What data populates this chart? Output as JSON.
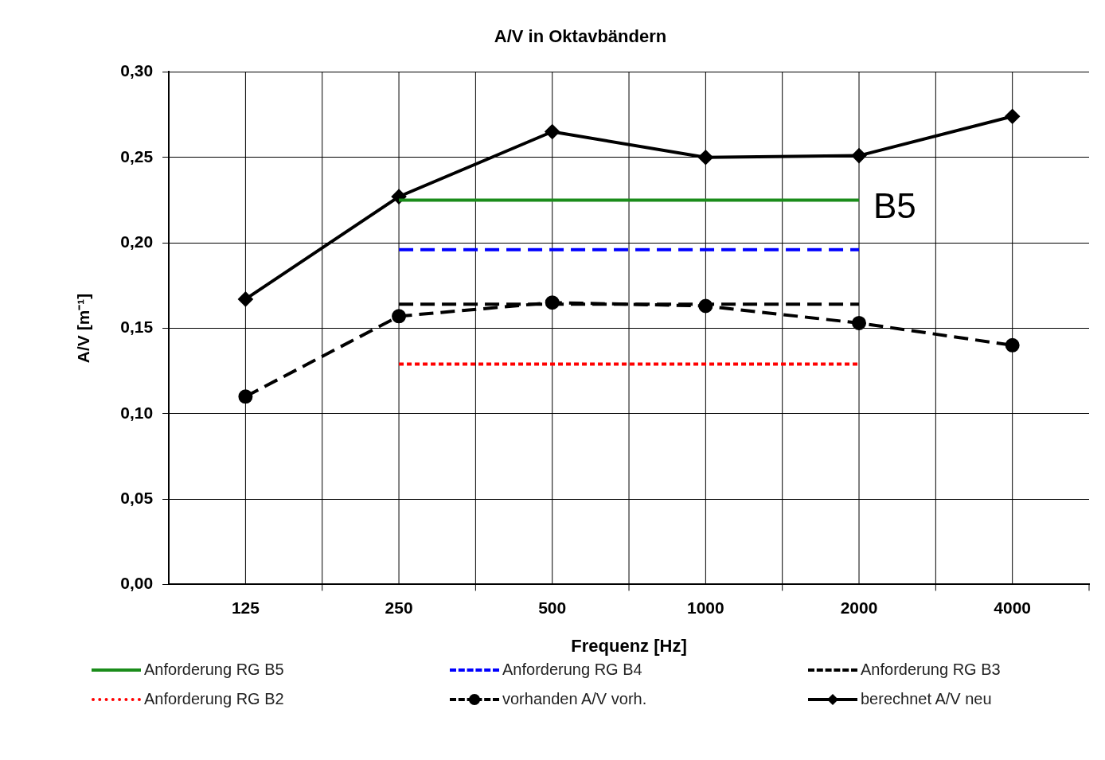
{
  "chart_data": {
    "type": "line",
    "title": "A/V in Oktavbändern",
    "xlabel": "Frequenz [Hz]",
    "ylabel": "A/V [m⁻¹]",
    "categories": [
      "125",
      "250",
      "500",
      "1000",
      "2000",
      "4000"
    ],
    "ylim": [
      0,
      0.3
    ],
    "yticks": [
      {
        "value": 0,
        "label": "0,00"
      },
      {
        "value": 0.05,
        "label": "0,05"
      },
      {
        "value": 0.1,
        "label": "0,10"
      },
      {
        "value": 0.15,
        "label": "0,15"
      },
      {
        "value": 0.2,
        "label": "0,20"
      },
      {
        "value": 0.25,
        "label": "0,25"
      },
      {
        "value": 0.3,
        "label": "0,30"
      }
    ],
    "grid": true,
    "legend": "bottom",
    "series": [
      {
        "name": "Anforderung RG B5",
        "color": "#1a8c1a",
        "line_style": "solid",
        "marker": "none",
        "values": [
          null,
          0.225,
          0.225,
          0.225,
          0.225,
          null
        ]
      },
      {
        "name": "Anforderung RG B4",
        "color": "#0000ff",
        "line_style": "dashed",
        "marker": "none",
        "values": [
          null,
          0.196,
          0.196,
          0.196,
          0.196,
          null
        ]
      },
      {
        "name": "Anforderung RG B3",
        "color": "#000000",
        "line_style": "dashed",
        "marker": "none",
        "values": [
          null,
          0.164,
          0.164,
          0.164,
          0.164,
          null
        ]
      },
      {
        "name": "Anforderung RG B2",
        "color": "#ff0000",
        "line_style": "dotted",
        "marker": "none",
        "values": [
          null,
          0.129,
          0.129,
          0.129,
          0.129,
          null
        ]
      },
      {
        "name": "vorhanden A/V vorh.",
        "color": "#000000",
        "line_style": "dashed",
        "marker": "circle",
        "values": [
          0.11,
          0.157,
          0.165,
          0.163,
          0.153,
          0.14
        ]
      },
      {
        "name": "berechnet A/V neu",
        "color": "#000000",
        "line_style": "solid",
        "marker": "diamond",
        "values": [
          0.167,
          0.227,
          0.265,
          0.25,
          0.251,
          0.274
        ]
      }
    ],
    "annotations": [
      {
        "text": "B5",
        "x": "2000",
        "y": 0.225
      }
    ]
  }
}
